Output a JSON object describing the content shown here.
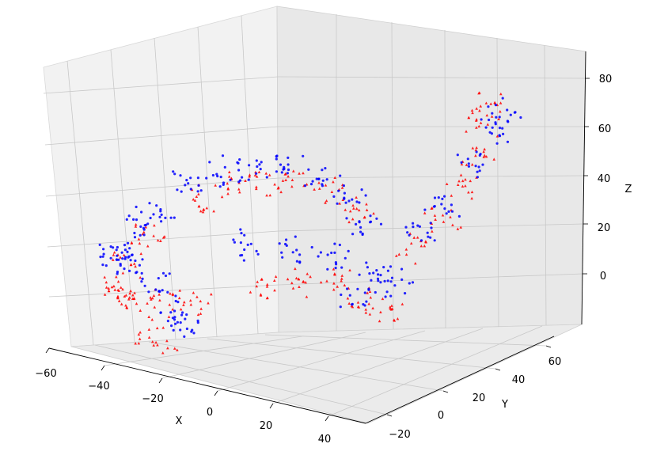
{
  "chart_data": {
    "type": "scatter",
    "projection": "3d",
    "title": "",
    "xlabel": "X",
    "ylabel": "Y",
    "zlabel": "Z",
    "xlim": [
      -60,
      45
    ],
    "ylim": [
      -25,
      70
    ],
    "zlim": [
      -15,
      85
    ],
    "xticks": [
      "−60",
      "−40",
      "−20",
      "0",
      "20",
      "40"
    ],
    "yticks": [
      "−20",
      "0",
      "20",
      "40",
      "60"
    ],
    "zticks": [
      "0",
      "20",
      "40",
      "60",
      "80"
    ],
    "grid": true,
    "series": [
      {
        "color": "#0000ff",
        "marker": "circle",
        "description_points": [
          [
            -30,
            10,
            45
          ],
          [
            -20,
            10,
            52
          ],
          [
            -10,
            12,
            55
          ],
          [
            0,
            15,
            58
          ],
          [
            10,
            18,
            55
          ],
          [
            20,
            20,
            48
          ],
          [
            25,
            20,
            40
          ],
          [
            -40,
            5,
            30
          ],
          [
            -45,
            5,
            25
          ],
          [
            -50,
            0,
            15
          ],
          [
            -52,
            2,
            10
          ],
          [
            -48,
            5,
            8
          ],
          [
            -35,
            0,
            5
          ],
          [
            -25,
            -5,
            0
          ],
          [
            -20,
            -8,
            -5
          ],
          [
            -10,
            10,
            25
          ],
          [
            0,
            20,
            22
          ],
          [
            10,
            25,
            20
          ],
          [
            20,
            30,
            15
          ],
          [
            25,
            35,
            10
          ],
          [
            15,
            30,
            5
          ],
          [
            30,
            40,
            30
          ],
          [
            35,
            45,
            40
          ],
          [
            40,
            55,
            55
          ],
          [
            42,
            62,
            65
          ],
          [
            40,
            68,
            72
          ]
        ]
      },
      {
        "color": "#ff0000",
        "marker": "triangle",
        "description_points": [
          [
            -30,
            15,
            35
          ],
          [
            -20,
            15,
            45
          ],
          [
            -10,
            18,
            48
          ],
          [
            0,
            20,
            50
          ],
          [
            10,
            22,
            48
          ],
          [
            20,
            25,
            42
          ],
          [
            -45,
            8,
            20
          ],
          [
            -50,
            5,
            12
          ],
          [
            -52,
            5,
            0
          ],
          [
            -55,
            8,
            -5
          ],
          [
            -50,
            10,
            -10
          ],
          [
            -40,
            10,
            -5
          ],
          [
            -38,
            0,
            -15
          ],
          [
            -30,
            -5,
            -20
          ],
          [
            -25,
            5,
            0
          ],
          [
            -5,
            10,
            10
          ],
          [
            5,
            15,
            12
          ],
          [
            15,
            20,
            15
          ],
          [
            20,
            25,
            5
          ],
          [
            25,
            30,
            0
          ],
          [
            30,
            38,
            25
          ],
          [
            35,
            45,
            35
          ],
          [
            38,
            50,
            48
          ],
          [
            40,
            56,
            58
          ],
          [
            38,
            62,
            68
          ],
          [
            36,
            66,
            74
          ]
        ]
      }
    ]
  }
}
